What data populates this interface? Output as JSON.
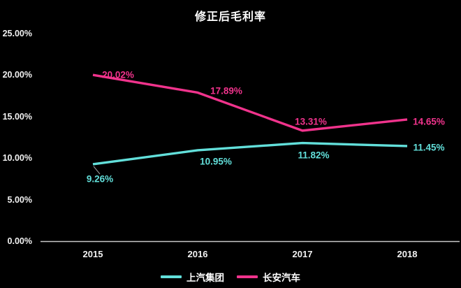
{
  "page": {
    "background_color": "#000000",
    "text_color": "#FFFFFF",
    "axis_color": "#C9C9C9"
  },
  "chart_data": {
    "type": "line",
    "title": "修正后毛利率",
    "categories": [
      "2015",
      "2016",
      "2017",
      "2018"
    ],
    "series": [
      {
        "name": "上汽集团",
        "color": "#62DFDA",
        "values": [
          9.26,
          10.95,
          11.82,
          11.45
        ],
        "labels": [
          "9.26%",
          "10.95%",
          "11.82%",
          "11.45%"
        ]
      },
      {
        "name": "长安汽车",
        "color": "#F0338C",
        "values": [
          20.02,
          17.89,
          13.31,
          14.65
        ],
        "labels": [
          "20.02%",
          "17.89%",
          "13.31%",
          "14.65%"
        ]
      }
    ],
    "ylim": [
      0,
      25
    ],
    "ytick_step": 5,
    "ytick_labels": [
      "0.00%",
      "5.00%",
      "10.00%",
      "15.00%",
      "20.00%",
      "25.00%"
    ],
    "grid": false,
    "legend_position": "bottom",
    "leader_line_color": "#A6A6A6"
  }
}
